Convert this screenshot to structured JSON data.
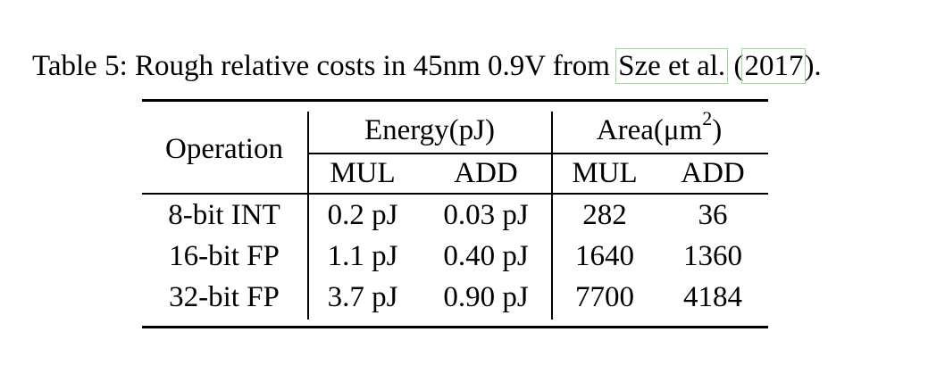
{
  "caption": {
    "label": "Table 5:",
    "text_before": " Rough relative costs in 45nm 0.9V from ",
    "cite_author": "Sze et al.",
    "cite_open": " (",
    "cite_year": "2017",
    "cite_close": ").",
    "cite_box_color": "#9bd69b"
  },
  "table": {
    "header": {
      "operation": "Operation",
      "energy_group": "Energy(pJ)",
      "area_group_prefix": "Area(μm",
      "area_group_sup": "2",
      "area_group_suffix": ")",
      "sub_columns": [
        "MUL",
        "ADD",
        "MUL",
        "ADD"
      ]
    },
    "rows": [
      {
        "operation": "8-bit INT",
        "energy_mul": "0.2 pJ",
        "energy_add": "0.03 pJ",
        "area_mul": "282",
        "area_add": "36"
      },
      {
        "operation": "16-bit FP",
        "energy_mul": "1.1 pJ",
        "energy_add": "0.40 pJ",
        "area_mul": "1640",
        "area_add": "1360"
      },
      {
        "operation": "32-bit FP",
        "energy_mul": "3.7 pJ",
        "energy_add": "0.90 pJ",
        "area_mul": "7700",
        "area_add": "4184"
      }
    ]
  }
}
